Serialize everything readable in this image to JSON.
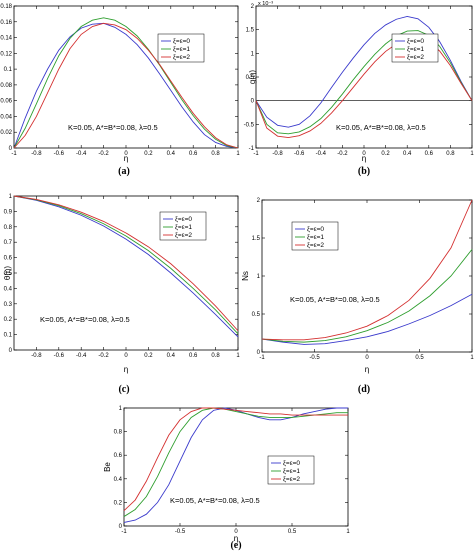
{
  "chart_data": [
    {
      "id": "a",
      "type": "line",
      "caption": "(a)",
      "xlabel": "η",
      "ylabel": "",
      "xlim": [
        -1,
        1
      ],
      "ylim": [
        0,
        0.18
      ],
      "xticks": [
        -1,
        -0.8,
        -0.6,
        -0.4,
        -0.2,
        0,
        0.2,
        0.4,
        0.6,
        0.8,
        1
      ],
      "yticks": [
        0,
        0.02,
        0.04,
        0.06,
        0.08,
        0.1,
        0.12,
        0.14,
        0.16,
        0.18
      ],
      "xticklabels": [
        "-1",
        "-0.8",
        "-0.6",
        "-0.4",
        "-0.2",
        "0",
        "0.2",
        "0.4",
        "0.6",
        "0.8",
        "1"
      ],
      "yticklabels": [
        "0",
        "0.02",
        "0.04",
        "0.06",
        "0.08",
        "0.1",
        "0.12",
        "0.14",
        "0.16",
        "0.18"
      ],
      "annotation": "K=0.05, A*=B*=0.08, λ=0.5",
      "legend_position": "top-right",
      "x": [
        -1,
        -0.9,
        -0.8,
        -0.7,
        -0.6,
        -0.5,
        -0.4,
        -0.3,
        -0.2,
        -0.1,
        0,
        0.1,
        0.2,
        0.3,
        0.4,
        0.5,
        0.6,
        0.7,
        0.8,
        0.9,
        1
      ],
      "series": [
        {
          "name": "ξ=ε=0",
          "color": "#3a3acc",
          "values": [
            0,
            0.038,
            0.072,
            0.1,
            0.124,
            0.141,
            0.152,
            0.157,
            0.158,
            0.153,
            0.144,
            0.131,
            0.114,
            0.094,
            0.073,
            0.052,
            0.033,
            0.017,
            0.007,
            0.002,
            0
          ]
        },
        {
          "name": "ξ=ε=1",
          "color": "#2e9e2e",
          "values": [
            0,
            0.025,
            0.056,
            0.088,
            0.117,
            0.139,
            0.154,
            0.162,
            0.165,
            0.162,
            0.154,
            0.142,
            0.125,
            0.105,
            0.083,
            0.061,
            0.041,
            0.024,
            0.011,
            0.003,
            0
          ]
        },
        {
          "name": "ξ=ε=2",
          "color": "#d43030",
          "values": [
            0,
            0.016,
            0.04,
            0.07,
            0.1,
            0.126,
            0.144,
            0.154,
            0.158,
            0.156,
            0.15,
            0.139,
            0.124,
            0.106,
            0.085,
            0.064,
            0.044,
            0.027,
            0.013,
            0.004,
            0
          ]
        }
      ]
    },
    {
      "id": "b",
      "type": "line",
      "caption": "(b)",
      "xlabel": "η",
      "ylabel": "g(η)",
      "exponent_label": "x 10⁻³",
      "xlim": [
        -1,
        1
      ],
      "ylim": [
        -1,
        2
      ],
      "xticks": [
        -1,
        -0.8,
        -0.6,
        -0.4,
        -0.2,
        0,
        0.2,
        0.4,
        0.6,
        0.8,
        1
      ],
      "yticks": [
        -1,
        -0.5,
        0,
        0.5,
        1,
        1.5,
        2
      ],
      "xticklabels": [
        "-1",
        "-0.8",
        "-0.6",
        "-0.4",
        "-0.2",
        "0",
        "0.2",
        "0.4",
        "0.6",
        "0.8",
        "1"
      ],
      "yticklabels": [
        "-1",
        "-0.5",
        "0",
        "0.5",
        "1",
        "1.5",
        "2"
      ],
      "zero_line": true,
      "annotation": "K=0.05, A*=B*=0.08, λ=0.5",
      "legend_position": "top-right",
      "x": [
        -1,
        -0.9,
        -0.8,
        -0.7,
        -0.6,
        -0.5,
        -0.4,
        -0.3,
        -0.2,
        -0.1,
        0,
        0.1,
        0.2,
        0.3,
        0.4,
        0.5,
        0.6,
        0.7,
        0.8,
        0.9,
        1
      ],
      "series": [
        {
          "name": "ξ=ε=0",
          "color": "#3a3acc",
          "values": [
            0,
            -0.35,
            -0.52,
            -0.56,
            -0.5,
            -0.32,
            -0.05,
            0.28,
            0.6,
            0.9,
            1.18,
            1.42,
            1.6,
            1.72,
            1.78,
            1.73,
            1.55,
            1.25,
            0.85,
            0.4,
            0
          ]
        },
        {
          "name": "ξ=ε=1",
          "color": "#2e9e2e",
          "values": [
            0,
            -0.5,
            -0.68,
            -0.7,
            -0.66,
            -0.55,
            -0.38,
            -0.14,
            0.14,
            0.44,
            0.72,
            0.98,
            1.2,
            1.37,
            1.47,
            1.48,
            1.38,
            1.15,
            0.8,
            0.38,
            0
          ]
        },
        {
          "name": "ξ=ε=2",
          "color": "#d43030",
          "values": [
            0,
            -0.58,
            -0.75,
            -0.78,
            -0.74,
            -0.64,
            -0.48,
            -0.26,
            0.0,
            0.28,
            0.56,
            0.82,
            1.04,
            1.2,
            1.3,
            1.32,
            1.24,
            1.05,
            0.74,
            0.36,
            0
          ]
        }
      ]
    },
    {
      "id": "c",
      "type": "line",
      "caption": "(c)",
      "xlabel": "η",
      "ylabel": "θ(η)",
      "xlim": [
        -1,
        1
      ],
      "ylim": [
        0,
        1
      ],
      "xticks": [
        -0.8,
        -0.6,
        -0.4,
        -0.2,
        0,
        0.2,
        0.4,
        0.6,
        0.8,
        1
      ],
      "yticks": [
        0,
        0.1,
        0.2,
        0.3,
        0.4,
        0.5,
        0.6,
        0.7,
        0.8,
        0.9,
        1
      ],
      "xticklabels": [
        "-0.8",
        "-0.6",
        "-0.4",
        "-0.2",
        "0",
        "0.2",
        "0.4",
        "0.6",
        "0.8",
        "1"
      ],
      "yticklabels": [
        "0",
        "0.1",
        "0.2",
        "0.3",
        "0.4",
        "0.5",
        "0.6",
        "0.7",
        "0.8",
        "0.9",
        "1"
      ],
      "annotation": "K=0.05, A*=B*=0.08, λ=0.5",
      "legend_position": "top-right",
      "x": [
        -1,
        -0.8,
        -0.6,
        -0.4,
        -0.2,
        0,
        0.2,
        0.4,
        0.6,
        0.8,
        1
      ],
      "series": [
        {
          "name": "ξ=ε=0",
          "color": "#3a3acc",
          "values": [
            1,
            0.972,
            0.93,
            0.875,
            0.805,
            0.72,
            0.62,
            0.5,
            0.37,
            0.23,
            0.085
          ]
        },
        {
          "name": "ξ=ε=1",
          "color": "#2e9e2e",
          "values": [
            1,
            0.975,
            0.937,
            0.885,
            0.82,
            0.74,
            0.645,
            0.53,
            0.4,
            0.26,
            0.105
          ]
        },
        {
          "name": "ξ=ε=2",
          "color": "#d43030",
          "values": [
            1,
            0.978,
            0.943,
            0.895,
            0.835,
            0.76,
            0.67,
            0.56,
            0.43,
            0.285,
            0.125
          ]
        }
      ]
    },
    {
      "id": "d",
      "type": "line",
      "caption": "(d)",
      "xlabel": "η",
      "ylabel": "Ns",
      "xlim": [
        -1,
        1
      ],
      "ylim": [
        0,
        2
      ],
      "xticks": [
        -1,
        -0.5,
        0,
        0.5,
        1
      ],
      "yticks": [
        0,
        0.5,
        1,
        1.5,
        2
      ],
      "xticklabels": [
        "-1",
        "-0.5",
        "0",
        "0.5",
        "1"
      ],
      "yticklabels": [
        "0",
        "0.5",
        "1",
        "1.5",
        "2"
      ],
      "annotation": "K=0.05, A*=B*=0.08, λ=0.5",
      "legend_position": "top-left",
      "x": [
        -1,
        -0.8,
        -0.6,
        -0.4,
        -0.2,
        0,
        0.2,
        0.4,
        0.6,
        0.8,
        1
      ],
      "series": [
        {
          "name": "ξ=ε=0",
          "color": "#3a3acc",
          "values": [
            0.17,
            0.13,
            0.1,
            0.11,
            0.15,
            0.2,
            0.27,
            0.37,
            0.48,
            0.61,
            0.76
          ]
        },
        {
          "name": "ξ=ε=1",
          "color": "#2e9e2e",
          "values": [
            0.17,
            0.14,
            0.13,
            0.15,
            0.2,
            0.28,
            0.39,
            0.54,
            0.74,
            1.0,
            1.35
          ]
        },
        {
          "name": "ξ=ε=2",
          "color": "#d43030",
          "values": [
            0.17,
            0.16,
            0.16,
            0.19,
            0.25,
            0.34,
            0.48,
            0.68,
            0.97,
            1.37,
            2.0
          ]
        }
      ]
    },
    {
      "id": "e",
      "type": "line",
      "caption": "(e)",
      "xlabel": "η",
      "ylabel": "Be",
      "xlim": [
        -1,
        1
      ],
      "ylim": [
        0,
        1
      ],
      "xticks": [
        -1,
        -0.5,
        0,
        0.5,
        1
      ],
      "yticks": [
        0,
        0.2,
        0.4,
        0.6,
        0.8,
        1
      ],
      "xticklabels": [
        "-1",
        "-0.5",
        "0",
        "0.5",
        "1"
      ],
      "yticklabels": [
        "0",
        "0.2",
        "0.4",
        "0.6",
        "0.8",
        "1"
      ],
      "annotation": "K=0.05, A*=B*=0.08, λ=0.5",
      "legend_position": "right",
      "x": [
        -1,
        -0.9,
        -0.8,
        -0.7,
        -0.6,
        -0.5,
        -0.4,
        -0.3,
        -0.2,
        -0.1,
        0,
        0.1,
        0.2,
        0.3,
        0.4,
        0.5,
        0.6,
        0.7,
        0.8,
        0.9,
        1
      ],
      "series": [
        {
          "name": "ξ=ε=0",
          "color": "#3a3acc",
          "values": [
            0.03,
            0.05,
            0.1,
            0.2,
            0.35,
            0.55,
            0.75,
            0.9,
            0.98,
            1.0,
            0.98,
            0.95,
            0.92,
            0.9,
            0.9,
            0.92,
            0.95,
            0.97,
            0.99,
            1.0,
            1.0
          ]
        },
        {
          "name": "ξ=ε=1",
          "color": "#2e9e2e",
          "values": [
            0.08,
            0.14,
            0.25,
            0.42,
            0.62,
            0.8,
            0.92,
            0.98,
            1.0,
            0.99,
            0.97,
            0.95,
            0.93,
            0.92,
            0.92,
            0.92,
            0.93,
            0.94,
            0.95,
            0.96,
            0.96
          ]
        },
        {
          "name": "ξ=ε=2",
          "color": "#d43030",
          "values": [
            0.13,
            0.22,
            0.38,
            0.58,
            0.77,
            0.9,
            0.97,
            1.0,
            1.0,
            0.99,
            0.98,
            0.97,
            0.96,
            0.95,
            0.95,
            0.94,
            0.94,
            0.94,
            0.94,
            0.94,
            0.94
          ]
        }
      ]
    }
  ]
}
